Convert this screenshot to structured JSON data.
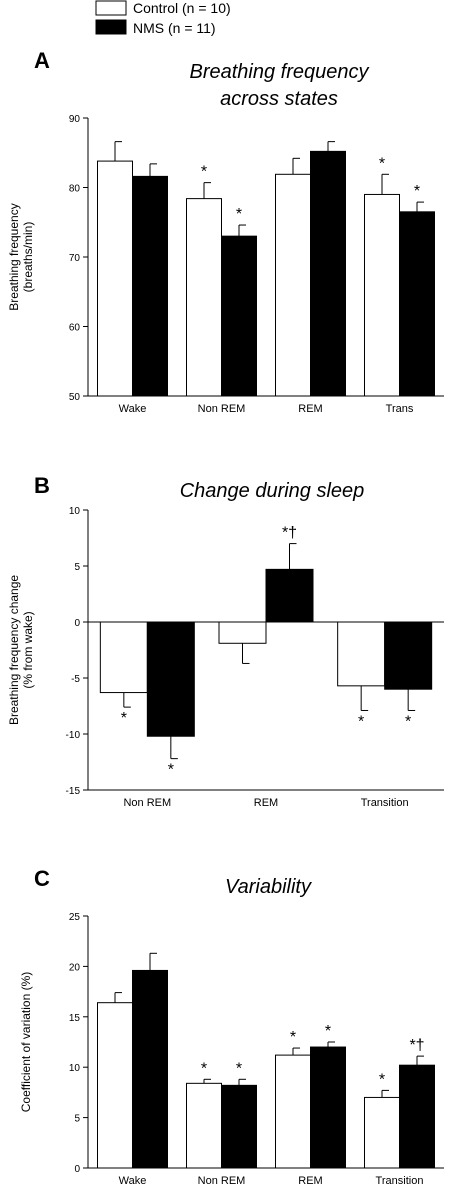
{
  "legend": [
    {
      "label": "Control (n = 10)",
      "color": "#ffffff"
    },
    {
      "label": "NMS (n = 11)",
      "color": "#000000"
    }
  ],
  "chart_data": [
    {
      "panel": "A",
      "type": "bar",
      "title_lines": [
        "Breathing frequency",
        "across states"
      ],
      "ylabel_lines": [
        "Breathing frequency",
        "(breaths/min)"
      ],
      "ylim": [
        50,
        90
      ],
      "yticks": [
        50,
        60,
        70,
        80,
        90
      ],
      "categories": [
        "Wake",
        "Non REM",
        "REM",
        "Trans"
      ],
      "series": [
        {
          "name": "Control (n = 10)",
          "values": [
            83.8,
            78.4,
            81.9,
            79.0
          ],
          "errors": [
            2.8,
            2.3,
            2.3,
            2.9
          ],
          "significance": [
            "",
            "*",
            "",
            "*"
          ]
        },
        {
          "name": "NMS (n = 11)",
          "values": [
            81.6,
            73.0,
            85.2,
            76.5
          ],
          "errors": [
            1.8,
            1.6,
            1.4,
            1.4
          ],
          "significance": [
            "",
            "*",
            "",
            "*"
          ]
        }
      ]
    },
    {
      "panel": "B",
      "type": "bar",
      "title_lines": [
        "Change during sleep"
      ],
      "ylabel_lines": [
        "Breathing frequency change",
        "(% from wake)"
      ],
      "ylim": [
        -15,
        10
      ],
      "yticks": [
        -15,
        -10,
        -5,
        0,
        5,
        10
      ],
      "categories": [
        "Non REM",
        "REM",
        "Transition"
      ],
      "series": [
        {
          "name": "Control (n = 10)",
          "values": [
            -6.3,
            -1.9,
            -5.7
          ],
          "errors": [
            1.3,
            1.8,
            2.2
          ],
          "significance": [
            "*",
            "",
            "*"
          ]
        },
        {
          "name": "NMS (n = 11)",
          "values": [
            -10.2,
            4.7,
            -6.0
          ],
          "errors": [
            2.0,
            2.3,
            1.9
          ],
          "significance": [
            "*",
            "*†",
            "*"
          ]
        }
      ]
    },
    {
      "panel": "C",
      "type": "bar",
      "title_lines": [
        "Variability"
      ],
      "ylabel_lines": [
        "Coefficient of variation (%)"
      ],
      "ylim": [
        0,
        25
      ],
      "yticks": [
        0,
        5,
        10,
        15,
        20,
        25
      ],
      "categories": [
        "Wake",
        "Non REM",
        "REM",
        "Transition"
      ],
      "series": [
        {
          "name": "Control (n = 10)",
          "values": [
            16.4,
            8.4,
            11.2,
            7.0
          ],
          "errors": [
            1.0,
            0.4,
            0.7,
            0.7
          ],
          "significance": [
            "",
            "*",
            "*",
            "*"
          ]
        },
        {
          "name": "NMS (n = 11)",
          "values": [
            19.6,
            8.2,
            12.0,
            10.2
          ],
          "errors": [
            1.7,
            0.6,
            0.5,
            0.9
          ],
          "significance": [
            "",
            "*",
            "*",
            "*†"
          ]
        }
      ]
    }
  ]
}
